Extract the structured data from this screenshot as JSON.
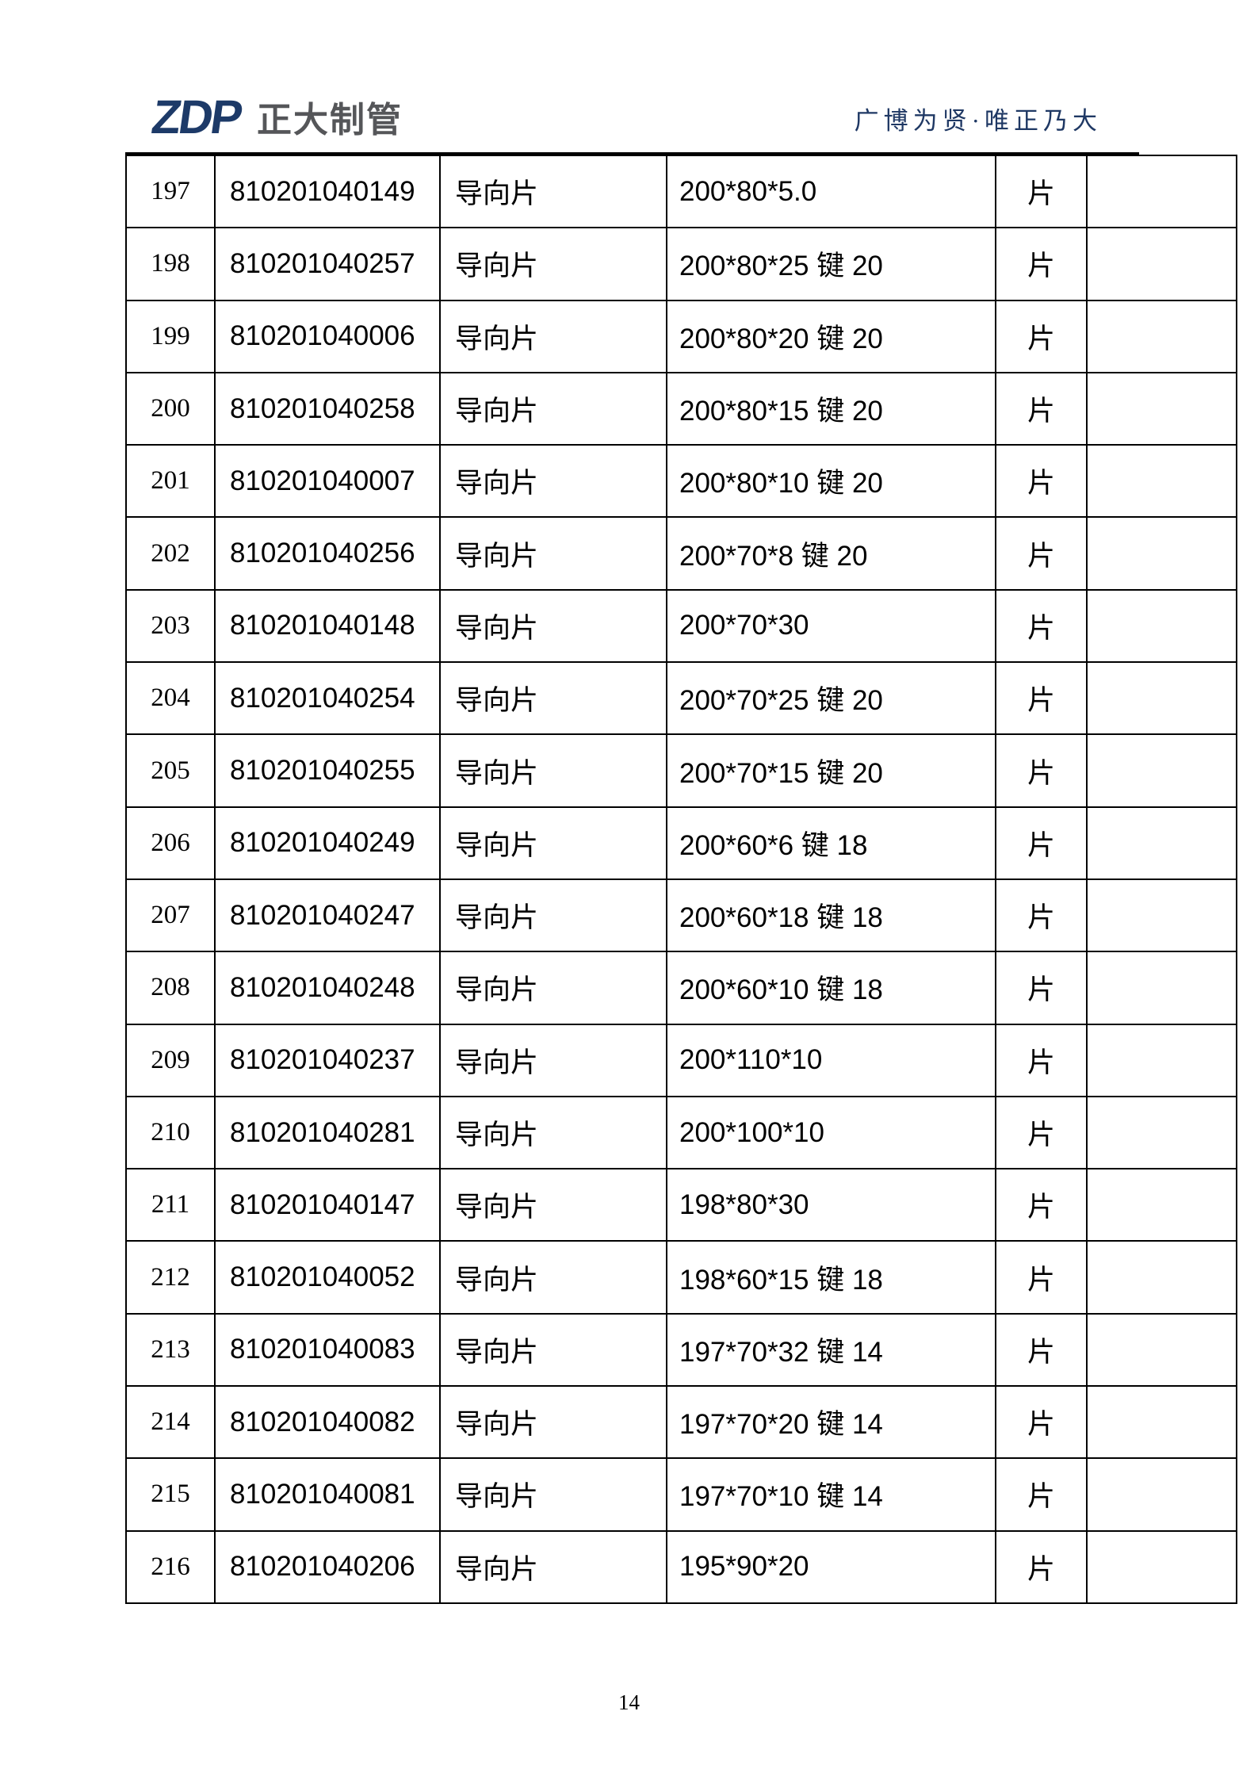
{
  "header": {
    "logo_zdp": "ZDP",
    "logo_company": "正大制管",
    "slogan": "广博为贤·唯正乃大"
  },
  "table": {
    "rows": [
      {
        "no": "197",
        "code": "810201040149",
        "name": "导向片",
        "spec": "200*80*5.0",
        "unit": "片",
        "note": ""
      },
      {
        "no": "198",
        "code": "810201040257",
        "name": "导向片",
        "spec": "200*80*25 键 20",
        "unit": "片",
        "note": ""
      },
      {
        "no": "199",
        "code": "810201040006",
        "name": "导向片",
        "spec": "200*80*20 键 20",
        "unit": "片",
        "note": ""
      },
      {
        "no": "200",
        "code": "810201040258",
        "name": "导向片",
        "spec": "200*80*15 键 20",
        "unit": "片",
        "note": ""
      },
      {
        "no": "201",
        "code": "810201040007",
        "name": "导向片",
        "spec": "200*80*10 键 20",
        "unit": "片",
        "note": ""
      },
      {
        "no": "202",
        "code": "810201040256",
        "name": "导向片",
        "spec": "200*70*8 键 20",
        "unit": "片",
        "note": ""
      },
      {
        "no": "203",
        "code": "810201040148",
        "name": "导向片",
        "spec": "200*70*30",
        "unit": "片",
        "note": ""
      },
      {
        "no": "204",
        "code": "810201040254",
        "name": "导向片",
        "spec": "200*70*25 键 20",
        "unit": "片",
        "note": ""
      },
      {
        "no": "205",
        "code": "810201040255",
        "name": "导向片",
        "spec": "200*70*15 键 20",
        "unit": "片",
        "note": ""
      },
      {
        "no": "206",
        "code": "810201040249",
        "name": "导向片",
        "spec": "200*60*6 键 18",
        "unit": "片",
        "note": ""
      },
      {
        "no": "207",
        "code": "810201040247",
        "name": "导向片",
        "spec": "200*60*18 键 18",
        "unit": "片",
        "note": ""
      },
      {
        "no": "208",
        "code": "810201040248",
        "name": "导向片",
        "spec": "200*60*10 键 18",
        "unit": "片",
        "note": ""
      },
      {
        "no": "209",
        "code": "810201040237",
        "name": "导向片",
        "spec": "200*110*10",
        "unit": "片",
        "note": ""
      },
      {
        "no": "210",
        "code": "810201040281",
        "name": "导向片",
        "spec": "200*100*10",
        "unit": "片",
        "note": ""
      },
      {
        "no": "211",
        "code": "810201040147",
        "name": "导向片",
        "spec": "198*80*30",
        "unit": "片",
        "note": ""
      },
      {
        "no": "212",
        "code": "810201040052",
        "name": "导向片",
        "spec": "198*60*15 键 18",
        "unit": "片",
        "note": ""
      },
      {
        "no": "213",
        "code": "810201040083",
        "name": "导向片",
        "spec": "197*70*32 键 14",
        "unit": "片",
        "note": ""
      },
      {
        "no": "214",
        "code": "810201040082",
        "name": "导向片",
        "spec": "197*70*20 键 14",
        "unit": "片",
        "note": ""
      },
      {
        "no": "215",
        "code": "810201040081",
        "name": "导向片",
        "spec": "197*70*10 键 14",
        "unit": "片",
        "note": ""
      },
      {
        "no": "216",
        "code": "810201040206",
        "name": "导向片",
        "spec": "195*90*20",
        "unit": "片",
        "note": ""
      }
    ]
  },
  "footer": {
    "page_number": "14"
  },
  "colors": {
    "logo_navy": "#1d3a68",
    "logo_gray": "#555659",
    "slogan_navy": "#1f3864",
    "rule_black": "#000000"
  }
}
